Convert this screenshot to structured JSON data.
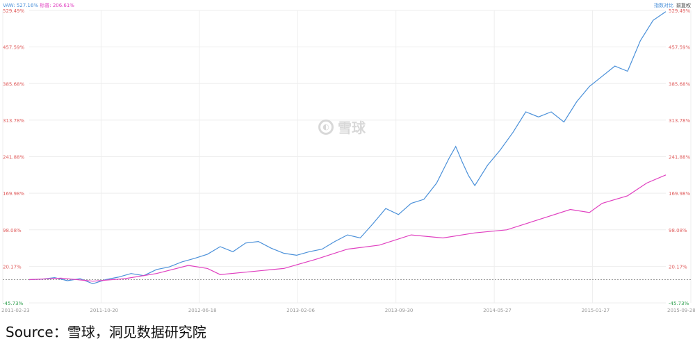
{
  "legend": {
    "series1": "VAW: 527.16%",
    "series2": "标普: 206.61%",
    "right_items": [
      "指数对比",
      "前复权"
    ]
  },
  "watermark": "雪球",
  "source": "Source：雪球，洞见数据研究院",
  "colors": {
    "series1": "#4a90d9",
    "series2": "#e040c0",
    "tick_pos": "#e06060",
    "tick_neg": "#2a9d4a"
  },
  "chart_data": {
    "type": "line",
    "x_ticks": [
      "2011-02-23",
      "2011-10-20",
      "2012-06-18",
      "2013-02-06",
      "2013-09-30",
      "2014-05-27",
      "2015-01-27",
      "2015-09-28"
    ],
    "y_ticks": [
      "529.49%",
      "457.59%",
      "385.68%",
      "313.78%",
      "241.88%",
      "169.98%",
      "98.08%",
      "20.17%",
      "-45.73%"
    ],
    "ylim": [
      -45.73,
      529.49
    ],
    "grid": true,
    "legend_position": "top-left",
    "series": [
      {
        "name": "VAW",
        "points": [
          [
            0,
            0
          ],
          [
            0.02,
            1
          ],
          [
            0.04,
            4
          ],
          [
            0.06,
            -2
          ],
          [
            0.08,
            2
          ],
          [
            0.1,
            -8
          ],
          [
            0.12,
            0
          ],
          [
            0.14,
            5
          ],
          [
            0.16,
            12
          ],
          [
            0.18,
            8
          ],
          [
            0.2,
            20
          ],
          [
            0.22,
            25
          ],
          [
            0.24,
            35
          ],
          [
            0.26,
            42
          ],
          [
            0.28,
            50
          ],
          [
            0.3,
            65
          ],
          [
            0.32,
            55
          ],
          [
            0.34,
            72
          ],
          [
            0.36,
            75
          ],
          [
            0.38,
            62
          ],
          [
            0.4,
            52
          ],
          [
            0.42,
            48
          ],
          [
            0.44,
            55
          ],
          [
            0.46,
            60
          ],
          [
            0.48,
            75
          ],
          [
            0.5,
            88
          ],
          [
            0.52,
            82
          ],
          [
            0.54,
            110
          ],
          [
            0.56,
            140
          ],
          [
            0.58,
            128
          ],
          [
            0.6,
            150
          ],
          [
            0.62,
            158
          ],
          [
            0.64,
            190
          ],
          [
            0.66,
            240
          ],
          [
            0.67,
            262
          ],
          [
            0.68,
            232
          ],
          [
            0.69,
            205
          ],
          [
            0.7,
            185
          ],
          [
            0.72,
            225
          ],
          [
            0.74,
            255
          ],
          [
            0.76,
            290
          ],
          [
            0.78,
            330
          ],
          [
            0.8,
            320
          ],
          [
            0.82,
            330
          ],
          [
            0.84,
            310
          ],
          [
            0.86,
            350
          ],
          [
            0.88,
            380
          ],
          [
            0.9,
            400
          ],
          [
            0.92,
            420
          ],
          [
            0.94,
            410
          ],
          [
            0.96,
            470
          ],
          [
            0.98,
            510
          ],
          [
            1.0,
            527
          ]
        ]
      },
      {
        "name": "标普",
        "points": [
          [
            0,
            0
          ],
          [
            0.05,
            3
          ],
          [
            0.1,
            -3
          ],
          [
            0.15,
            2
          ],
          [
            0.2,
            12
          ],
          [
            0.25,
            28
          ],
          [
            0.28,
            22
          ],
          [
            0.3,
            10
          ],
          [
            0.35,
            16
          ],
          [
            0.4,
            22
          ],
          [
            0.45,
            40
          ],
          [
            0.5,
            60
          ],
          [
            0.55,
            68
          ],
          [
            0.6,
            88
          ],
          [
            0.65,
            82
          ],
          [
            0.7,
            92
          ],
          [
            0.75,
            98
          ],
          [
            0.8,
            118
          ],
          [
            0.85,
            138
          ],
          [
            0.88,
            132
          ],
          [
            0.9,
            150
          ],
          [
            0.94,
            165
          ],
          [
            0.97,
            190
          ],
          [
            1.0,
            206
          ]
        ]
      }
    ]
  }
}
